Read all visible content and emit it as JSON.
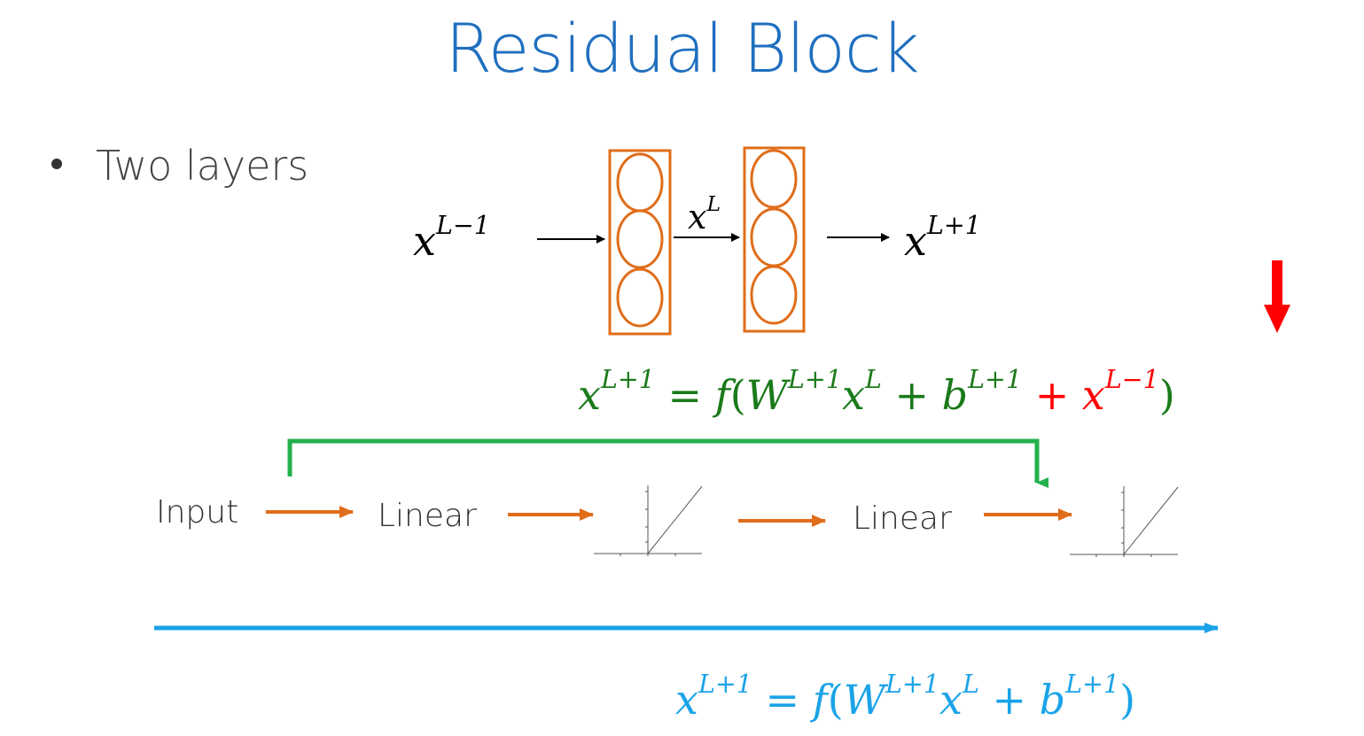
{
  "title": "Residual Block",
  "bullet": "Two layers",
  "network": {
    "input_label": {
      "base": "x",
      "sup": "L−1"
    },
    "middle_label": {
      "base": "x",
      "sup": "L"
    },
    "output_label": {
      "base": "x",
      "sup": "L+1"
    }
  },
  "residual_equation": {
    "lhs_sup": "L+1",
    "f": "f",
    "W_sup": "L+1",
    "x_sup": "L",
    "b_sup": "L+1",
    "skip_sup": "L−1"
  },
  "plain_equation": {
    "lhs_sup": "L+1",
    "W_sup": "L+1",
    "x_sup": "L",
    "b_sup": "L+1"
  },
  "flow": {
    "input": "Input",
    "linear1": "Linear",
    "linear2": "Linear"
  },
  "colors": {
    "title": "#1f6fbf",
    "node": "#e06d1a",
    "skip": "#22b14c",
    "red": "#ff0000",
    "plain": "#1aa3e8"
  }
}
